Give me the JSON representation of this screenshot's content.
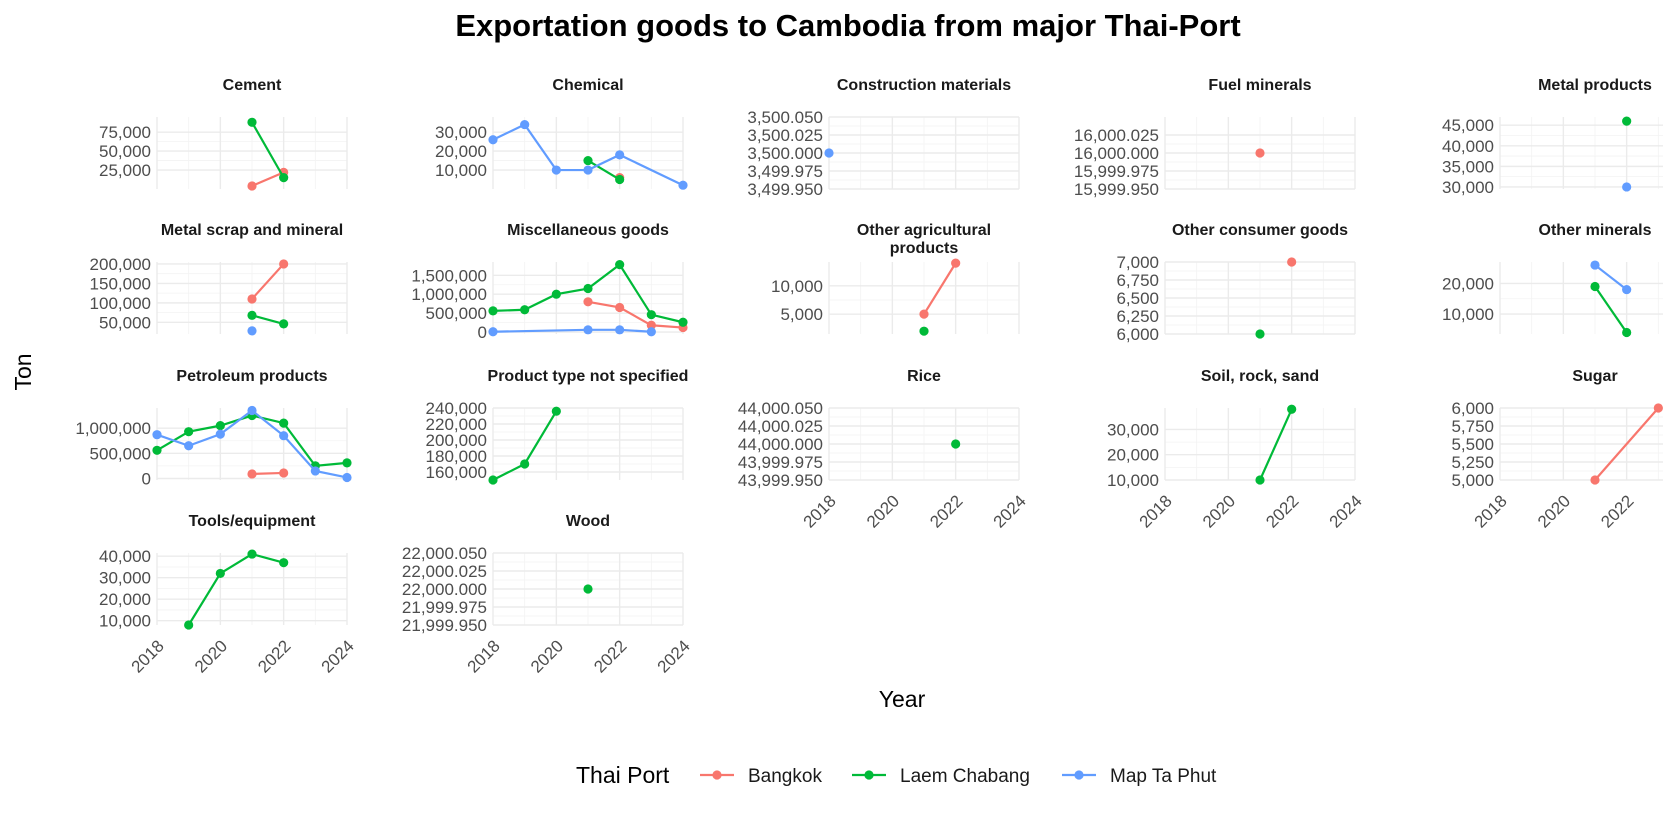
{
  "chart_data": {
    "type": "line",
    "title": "Exportation goods to Cambodia from major Thai-Port",
    "xlabel": "Year",
    "ylabel": "Ton",
    "xlim": [
      2018,
      2024
    ],
    "x_ticks": [
      2018,
      2020,
      2022,
      2024
    ],
    "legend": {
      "title": "Thai Port",
      "position": "bottom",
      "entries": [
        "Bangkok",
        "Laem Chabang",
        "Map Ta Phut"
      ]
    },
    "colors": {
      "Bangkok": "#F8766D",
      "Laem Chabang": "#00BA38",
      "Map Ta Phut": "#619CFF"
    },
    "grid": true,
    "facets": [
      {
        "title": "Cement",
        "ylim": [
          0,
          95000
        ],
        "y_ticks": [
          25000,
          50000,
          75000
        ],
        "series": [
          {
            "name": "Bangkok",
            "points": [
              [
                2021,
                4000
              ],
              [
                2022,
                22000
              ]
            ]
          },
          {
            "name": "Laem Chabang",
            "points": [
              [
                2021,
                88000
              ],
              [
                2022,
                15000
              ]
            ]
          }
        ]
      },
      {
        "title": "Chemical",
        "ylim": [
          0,
          38000
        ],
        "y_ticks": [
          10000,
          20000,
          30000
        ],
        "series": [
          {
            "name": "Bangkok",
            "points": [
              [
                2022,
                6000
              ]
            ]
          },
          {
            "name": "Laem Chabang",
            "points": [
              [
                2021,
                15000
              ],
              [
                2022,
                5000
              ]
            ]
          },
          {
            "name": "Map Ta Phut",
            "points": [
              [
                2018,
                26000
              ],
              [
                2019,
                34000
              ],
              [
                2020,
                10000
              ],
              [
                2021,
                10000
              ],
              [
                2022,
                18000
              ],
              [
                2024,
                2000
              ]
            ]
          }
        ]
      },
      {
        "title": "Construction materials",
        "ylim": [
          3499.95,
          3500.05
        ],
        "y_ticks": [
          3499.95,
          3499.975,
          3500,
          3500.025,
          3500.05
        ],
        "y_decimals": 3,
        "series": [
          {
            "name": "Map Ta Phut",
            "points": [
              [
                2018,
                3500
              ]
            ]
          }
        ]
      },
      {
        "title": "Fuel minerals",
        "ylim": [
          15999.95,
          16000.05
        ],
        "y_ticks": [
          15999.95,
          15999.975,
          16000,
          16000.025
        ],
        "y_decimals": 3,
        "series": [
          {
            "name": "Bangkok",
            "points": [
              [
                2021,
                16000
              ]
            ]
          }
        ]
      },
      {
        "title": "Metal products",
        "ylim": [
          29500,
          47000
        ],
        "y_ticks": [
          30000,
          35000,
          40000,
          45000
        ],
        "series": [
          {
            "name": "Laem Chabang",
            "points": [
              [
                2022,
                46000
              ]
            ]
          },
          {
            "name": "Map Ta Phut",
            "points": [
              [
                2022,
                30000
              ]
            ]
          }
        ]
      },
      {
        "title": "Metal scrap and mineral",
        "ylim": [
          20000,
          205000
        ],
        "y_ticks": [
          50000,
          100000,
          150000,
          200000
        ],
        "series": [
          {
            "name": "Bangkok",
            "points": [
              [
                2021,
                110000
              ],
              [
                2022,
                200000
              ]
            ]
          },
          {
            "name": "Laem Chabang",
            "points": [
              [
                2021,
                68000
              ],
              [
                2022,
                46000
              ]
            ]
          },
          {
            "name": "Map Ta Phut",
            "points": [
              [
                2021,
                28000
              ]
            ]
          }
        ]
      },
      {
        "title": "Miscellaneous goods",
        "ylim": [
          -50000,
          1850000
        ],
        "y_ticks": [
          0,
          500000,
          1000000,
          1500000
        ],
        "series": [
          {
            "name": "Bangkok",
            "points": [
              [
                2021,
                800000
              ],
              [
                2022,
                650000
              ],
              [
                2023,
                180000
              ],
              [
                2024,
                120000
              ]
            ]
          },
          {
            "name": "Laem Chabang",
            "points": [
              [
                2018,
                560000
              ],
              [
                2019,
                590000
              ],
              [
                2020,
                1000000
              ],
              [
                2021,
                1150000
              ],
              [
                2022,
                1780000
              ],
              [
                2023,
                460000
              ],
              [
                2024,
                260000
              ]
            ]
          },
          {
            "name": "Map Ta Phut",
            "points": [
              [
                2018,
                10000
              ],
              [
                2021,
                60000
              ],
              [
                2022,
                60000
              ],
              [
                2023,
                10000
              ]
            ]
          }
        ]
      },
      {
        "title": "Other agricultural products",
        "ylim": [
          1500,
          14200
        ],
        "y_ticks": [
          5000,
          10000
        ],
        "series": [
          {
            "name": "Bangkok",
            "points": [
              [
                2021,
                5000
              ],
              [
                2022,
                14000
              ]
            ]
          },
          {
            "name": "Laem Chabang",
            "points": [
              [
                2021,
                2000
              ]
            ]
          }
        ]
      },
      {
        "title": "Other consumer goods",
        "ylim": [
          6000,
          7000
        ],
        "y_ticks": [
          6000,
          6250,
          6500,
          6750,
          7000
        ],
        "series": [
          {
            "name": "Bangkok",
            "points": [
              [
                2022,
                7000
              ]
            ]
          },
          {
            "name": "Laem Chabang",
            "points": [
              [
                2021,
                6000
              ]
            ]
          }
        ]
      },
      {
        "title": "Other minerals",
        "ylim": [
          3500,
          27000
        ],
        "y_ticks": [
          10000,
          20000
        ],
        "series": [
          {
            "name": "Laem Chabang",
            "points": [
              [
                2021,
                19000
              ],
              [
                2022,
                4000
              ]
            ]
          },
          {
            "name": "Map Ta Phut",
            "points": [
              [
                2021,
                26000
              ],
              [
                2022,
                18000
              ]
            ]
          }
        ]
      },
      {
        "title": "Petroleum products",
        "ylim": [
          -30000,
          1400000
        ],
        "y_ticks": [
          0,
          500000,
          1000000
        ],
        "series": [
          {
            "name": "Bangkok",
            "points": [
              [
                2021,
                90000
              ],
              [
                2022,
                110000
              ]
            ]
          },
          {
            "name": "Laem Chabang",
            "points": [
              [
                2018,
                560000
              ],
              [
                2019,
                930000
              ],
              [
                2020,
                1050000
              ],
              [
                2021,
                1250000
              ],
              [
                2022,
                1100000
              ],
              [
                2023,
                250000
              ],
              [
                2024,
                310000
              ]
            ]
          },
          {
            "name": "Map Ta Phut",
            "points": [
              [
                2018,
                870000
              ],
              [
                2019,
                650000
              ],
              [
                2020,
                880000
              ],
              [
                2021,
                1350000
              ],
              [
                2022,
                850000
              ],
              [
                2023,
                150000
              ],
              [
                2024,
                20000
              ]
            ]
          }
        ]
      },
      {
        "title": "Product type not specified",
        "ylim": [
          150000,
          240000
        ],
        "y_ticks": [
          160000,
          180000,
          200000,
          220000,
          240000
        ],
        "series": [
          {
            "name": "Laem Chabang",
            "points": [
              [
                2018,
                150000
              ],
              [
                2019,
                170000
              ],
              [
                2020,
                236000
              ]
            ]
          }
        ]
      },
      {
        "title": "Rice",
        "ylim": [
          43999.95,
          44000.05
        ],
        "y_ticks": [
          43999.95,
          43999.975,
          44000,
          44000.025,
          44000.05
        ],
        "y_decimals": 3,
        "series": [
          {
            "name": "Laem Chabang",
            "points": [
              [
                2022,
                44000
              ]
            ]
          }
        ]
      },
      {
        "title": "Soil, rock, sand",
        "ylim": [
          10000,
          38500
        ],
        "y_ticks": [
          10000,
          20000,
          30000
        ],
        "series": [
          {
            "name": "Laem Chabang",
            "points": [
              [
                2021,
                10000
              ],
              [
                2022,
                38000
              ]
            ]
          }
        ]
      },
      {
        "title": "Sugar",
        "ylim": [
          5000,
          6000
        ],
        "y_ticks": [
          5000,
          5250,
          5500,
          5750,
          6000
        ],
        "series": [
          {
            "name": "Bangkok",
            "points": [
              [
                2021,
                5000
              ],
              [
                2023,
                6000
              ]
            ]
          }
        ]
      },
      {
        "title": "Tools/equipment",
        "ylim": [
          8000,
          41500
        ],
        "y_ticks": [
          10000,
          20000,
          30000,
          40000
        ],
        "series": [
          {
            "name": "Laem Chabang",
            "points": [
              [
                2019,
                8000
              ],
              [
                2020,
                32000
              ],
              [
                2021,
                41000
              ],
              [
                2022,
                37000
              ]
            ]
          }
        ]
      },
      {
        "title": "Wood",
        "ylim": [
          21999.95,
          22000.05
        ],
        "y_ticks": [
          21999.95,
          21999.975,
          22000,
          22000.025,
          22000.05
        ],
        "y_decimals": 3,
        "series": [
          {
            "name": "Laem Chabang",
            "points": [
              [
                2021,
                22000
              ]
            ]
          }
        ]
      }
    ]
  }
}
